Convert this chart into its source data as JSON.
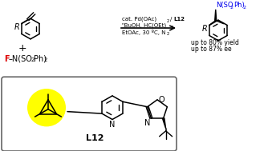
{
  "background": "#ffffff",
  "black": "#000000",
  "blue": "#0000ee",
  "red": "#dd0000",
  "yellow": "#ffff00",
  "box_edge": "#666666",
  "L12_label": "L12",
  "yield_text": "up to 80% yield",
  "ee_text": "up to 87% ee"
}
